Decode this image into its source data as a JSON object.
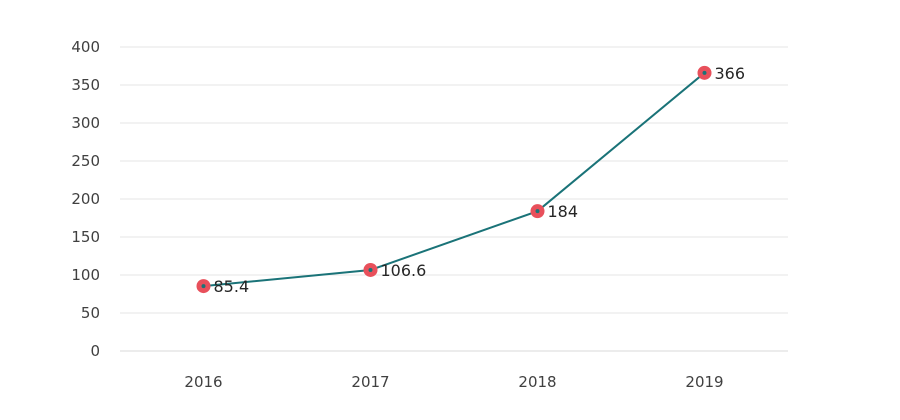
{
  "chart_data": {
    "type": "line",
    "categories": [
      "2016",
      "2017",
      "2018",
      "2019"
    ],
    "series": [
      {
        "values": [
          85.4,
          106.6,
          184,
          366
        ]
      }
    ],
    "data_labels": [
      "85.4",
      "106.6",
      "184",
      "366"
    ],
    "y_ticks": [
      "0",
      "50",
      "100",
      "150",
      "200",
      "250",
      "300",
      "350",
      "400"
    ],
    "ylim": [
      0,
      400
    ],
    "grid": true,
    "legend": "none",
    "colors": {
      "line": "#1a7378",
      "marker_ring": "#e8505b",
      "marker_center": "#1a7378"
    }
  }
}
